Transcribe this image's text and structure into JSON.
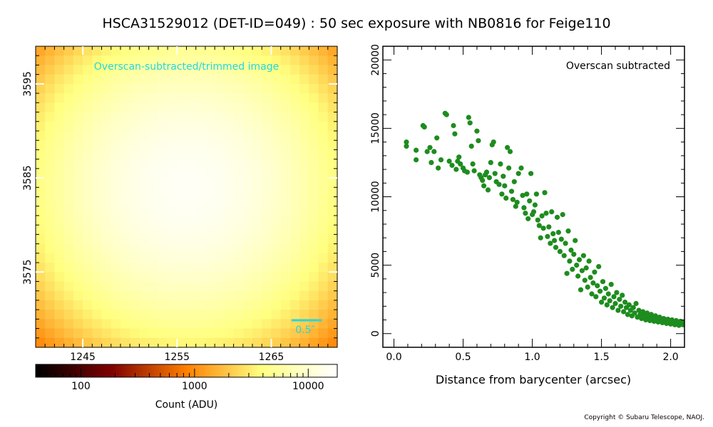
{
  "title": "HSCA31529012 (DET-ID=049) :  50 sec exposure with NB0816 for Feige110",
  "image_panel": {
    "annotation": "Overscan-subtracted/trimmed image",
    "scalebar_label": "0.5″",
    "annotation_color": "#22d8e0",
    "x_ticks": [
      "1245",
      "1255",
      "1265"
    ],
    "y_ticks": [
      "3575",
      "3585",
      "3595"
    ]
  },
  "colorbar": {
    "label": "Count (ADU)",
    "ticks": [
      "100",
      "1000",
      "10000"
    ],
    "colormap": "afmhot"
  },
  "scatter_panel": {
    "annotation": "Overscan subtracted",
    "xlabel": "Distance from barycenter (arcsec)",
    "x_ticks": [
      "0.0",
      "0.5",
      "1.0",
      "1.5",
      "2.0"
    ],
    "y_ticks": [
      "0",
      "5000",
      "10000",
      "15000",
      "20000"
    ],
    "point_color": "#1e8c1e"
  },
  "copyright": "Copyright © Subaru Telescope, NAOJ.",
  "chart_data": [
    {
      "type": "heatmap",
      "title": "Overscan-subtracted/trimmed image",
      "x_range": [
        1240,
        1272
      ],
      "y_range": [
        3567,
        3599
      ],
      "center": [
        1256,
        3584
      ],
      "peak": 16000,
      "colorbar_range": [
        40,
        18000
      ],
      "colorbar_scale": "log"
    },
    {
      "type": "scatter",
      "xlabel": "Distance from barycenter (arcsec)",
      "xlim": [
        -0.08,
        2.1
      ],
      "ylim": [
        -1000,
        21000
      ],
      "points": [
        [
          0.09,
          14000
        ],
        [
          0.09,
          13700
        ],
        [
          0.16,
          13400
        ],
        [
          0.16,
          12700
        ],
        [
          0.21,
          15200
        ],
        [
          0.22,
          15100
        ],
        [
          0.24,
          13300
        ],
        [
          0.26,
          13600
        ],
        [
          0.27,
          12500
        ],
        [
          0.29,
          13300
        ],
        [
          0.31,
          14300
        ],
        [
          0.32,
          12100
        ],
        [
          0.34,
          12700
        ],
        [
          0.37,
          16100
        ],
        [
          0.38,
          16000
        ],
        [
          0.4,
          12600
        ],
        [
          0.42,
          12300
        ],
        [
          0.43,
          15200
        ],
        [
          0.44,
          14600
        ],
        [
          0.45,
          12000
        ],
        [
          0.46,
          12600
        ],
        [
          0.47,
          12900
        ],
        [
          0.48,
          12400
        ],
        [
          0.5,
          12100
        ],
        [
          0.51,
          11900
        ],
        [
          0.53,
          11800
        ],
        [
          0.54,
          15800
        ],
        [
          0.55,
          15400
        ],
        [
          0.56,
          13700
        ],
        [
          0.57,
          12400
        ],
        [
          0.58,
          11900
        ],
        [
          0.6,
          14800
        ],
        [
          0.61,
          14100
        ],
        [
          0.62,
          11600
        ],
        [
          0.63,
          11400
        ],
        [
          0.64,
          11200
        ],
        [
          0.65,
          10800
        ],
        [
          0.66,
          11600
        ],
        [
          0.67,
          11800
        ],
        [
          0.68,
          10500
        ],
        [
          0.69,
          11400
        ],
        [
          0.7,
          12500
        ],
        [
          0.71,
          13800
        ],
        [
          0.72,
          14000
        ],
        [
          0.73,
          11700
        ],
        [
          0.74,
          11100
        ],
        [
          0.76,
          10900
        ],
        [
          0.77,
          12400
        ],
        [
          0.78,
          10200
        ],
        [
          0.79,
          11500
        ],
        [
          0.8,
          10800
        ],
        [
          0.81,
          9900
        ],
        [
          0.82,
          13600
        ],
        [
          0.83,
          12100
        ],
        [
          0.84,
          13300
        ],
        [
          0.85,
          10400
        ],
        [
          0.86,
          9800
        ],
        [
          0.87,
          11100
        ],
        [
          0.88,
          9300
        ],
        [
          0.89,
          9600
        ],
        [
          0.9,
          11700
        ],
        [
          0.92,
          12100
        ],
        [
          0.93,
          10100
        ],
        [
          0.94,
          9200
        ],
        [
          0.95,
          8800
        ],
        [
          0.96,
          10200
        ],
        [
          0.97,
          8400
        ],
        [
          0.98,
          9700
        ],
        [
          0.99,
          11700
        ],
        [
          1.0,
          8700
        ],
        [
          1.01,
          8900
        ],
        [
          1.02,
          9400
        ],
        [
          1.03,
          10200
        ],
        [
          1.04,
          8300
        ],
        [
          1.05,
          7900
        ],
        [
          1.06,
          7000
        ],
        [
          1.07,
          8600
        ],
        [
          1.08,
          7700
        ],
        [
          1.09,
          10300
        ],
        [
          1.1,
          8800
        ],
        [
          1.11,
          7100
        ],
        [
          1.12,
          7800
        ],
        [
          1.13,
          6600
        ],
        [
          1.14,
          8900
        ],
        [
          1.15,
          7300
        ],
        [
          1.16,
          6800
        ],
        [
          1.17,
          6300
        ],
        [
          1.18,
          8500
        ],
        [
          1.19,
          7400
        ],
        [
          1.2,
          6000
        ],
        [
          1.21,
          6900
        ],
        [
          1.22,
          8700
        ],
        [
          1.23,
          5700
        ],
        [
          1.24,
          6600
        ],
        [
          1.25,
          4400
        ],
        [
          1.26,
          7500
        ],
        [
          1.27,
          5300
        ],
        [
          1.28,
          6100
        ],
        [
          1.29,
          4700
        ],
        [
          1.3,
          5800
        ],
        [
          1.31,
          6800
        ],
        [
          1.32,
          5000
        ],
        [
          1.33,
          4200
        ],
        [
          1.34,
          5400
        ],
        [
          1.35,
          3200
        ],
        [
          1.36,
          4600
        ],
        [
          1.37,
          5700
        ],
        [
          1.38,
          3900
        ],
        [
          1.39,
          4800
        ],
        [
          1.4,
          3400
        ],
        [
          1.41,
          5300
        ],
        [
          1.42,
          4100
        ],
        [
          1.43,
          2900
        ],
        [
          1.44,
          3700
        ],
        [
          1.45,
          4500
        ],
        [
          1.46,
          2700
        ],
        [
          1.47,
          3500
        ],
        [
          1.48,
          4900
        ],
        [
          1.49,
          3100
        ],
        [
          1.5,
          2300
        ],
        [
          1.51,
          3800
        ],
        [
          1.52,
          2600
        ],
        [
          1.53,
          3300
        ],
        [
          1.54,
          2100
        ],
        [
          1.55,
          2900
        ],
        [
          1.56,
          2400
        ],
        [
          1.57,
          3600
        ],
        [
          1.58,
          1900
        ],
        [
          1.59,
          2700
        ],
        [
          1.6,
          2200
        ],
        [
          1.61,
          3000
        ],
        [
          1.62,
          1700
        ],
        [
          1.63,
          2500
        ],
        [
          1.64,
          2000
        ],
        [
          1.65,
          2800
        ],
        [
          1.66,
          1600
        ],
        [
          1.67,
          2300
        ],
        [
          1.68,
          1900
        ],
        [
          1.69,
          1400
        ],
        [
          1.7,
          2100
        ],
        [
          1.71,
          1700
        ],
        [
          1.72,
          1300
        ],
        [
          1.73,
          1900
        ],
        [
          1.74,
          1500
        ],
        [
          1.75,
          2200
        ],
        [
          1.76,
          1200
        ],
        [
          1.77,
          1700
        ],
        [
          1.78,
          1400
        ],
        [
          1.79,
          1100
        ],
        [
          1.8,
          1600
        ],
        [
          1.81,
          1300
        ],
        [
          1.82,
          1000
        ],
        [
          1.83,
          1500
        ],
        [
          1.84,
          1200
        ],
        [
          1.85,
          950
        ],
        [
          1.86,
          1400
        ],
        [
          1.87,
          1100
        ],
        [
          1.88,
          900
        ],
        [
          1.89,
          1300
        ],
        [
          1.9,
          1000
        ],
        [
          1.91,
          850
        ],
        [
          1.92,
          1200
        ],
        [
          1.93,
          950
        ],
        [
          1.94,
          800
        ],
        [
          1.95,
          1100
        ],
        [
          1.96,
          900
        ],
        [
          1.97,
          750
        ],
        [
          1.98,
          1050
        ],
        [
          1.99,
          850
        ],
        [
          2.0,
          700
        ],
        [
          2.01,
          1000
        ],
        [
          2.02,
          800
        ],
        [
          2.03,
          650
        ],
        [
          2.04,
          950
        ],
        [
          2.05,
          750
        ],
        [
          2.06,
          600
        ],
        [
          2.07,
          900
        ],
        [
          2.08,
          700
        ],
        [
          2.09,
          650
        ],
        [
          2.1,
          850
        ]
      ]
    }
  ]
}
